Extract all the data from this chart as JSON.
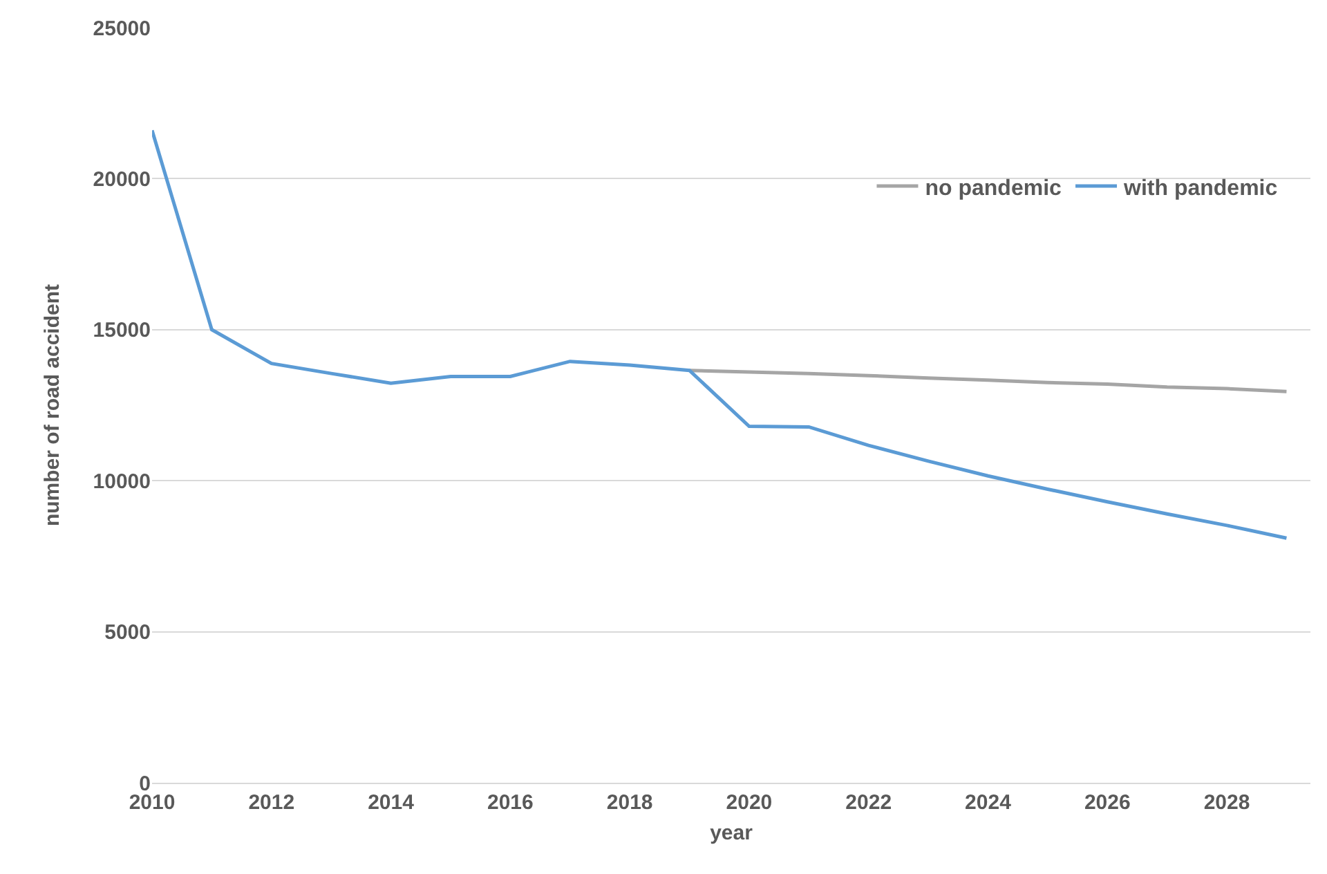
{
  "chart_data": {
    "type": "line",
    "xlabel": "year",
    "ylabel": "number of road accident",
    "x": [
      2010,
      2011,
      2012,
      2013,
      2014,
      2015,
      2016,
      2017,
      2018,
      2019,
      2020,
      2021,
      2022,
      2023,
      2024,
      2025,
      2026,
      2027,
      2028,
      2029
    ],
    "series": [
      {
        "name": "no pandemic",
        "color": "#a5a5a5",
        "values": [
          null,
          null,
          null,
          null,
          null,
          null,
          null,
          null,
          null,
          13650,
          13600,
          13550,
          13480,
          13400,
          13330,
          13250,
          13200,
          13100,
          13050,
          12950
        ]
      },
      {
        "name": "with pandemic",
        "color": "#5b9bd5",
        "values": [
          21600,
          15000,
          13880,
          13550,
          13230,
          13450,
          13450,
          13950,
          13830,
          13650,
          11800,
          11780,
          11170,
          10650,
          10160,
          9720,
          9300,
          8900,
          8520,
          8100
        ]
      }
    ],
    "xlim": [
      2010,
      2029.4
    ],
    "xticks": [
      2010,
      2012,
      2014,
      2016,
      2018,
      2020,
      2022,
      2024,
      2026,
      2028
    ],
    "ylim": [
      0,
      25000
    ],
    "yticks": [
      0,
      5000,
      10000,
      15000,
      20000,
      25000
    ],
    "grid": "y",
    "legend": "top right",
    "marker": "none",
    "line_style": "solid"
  }
}
